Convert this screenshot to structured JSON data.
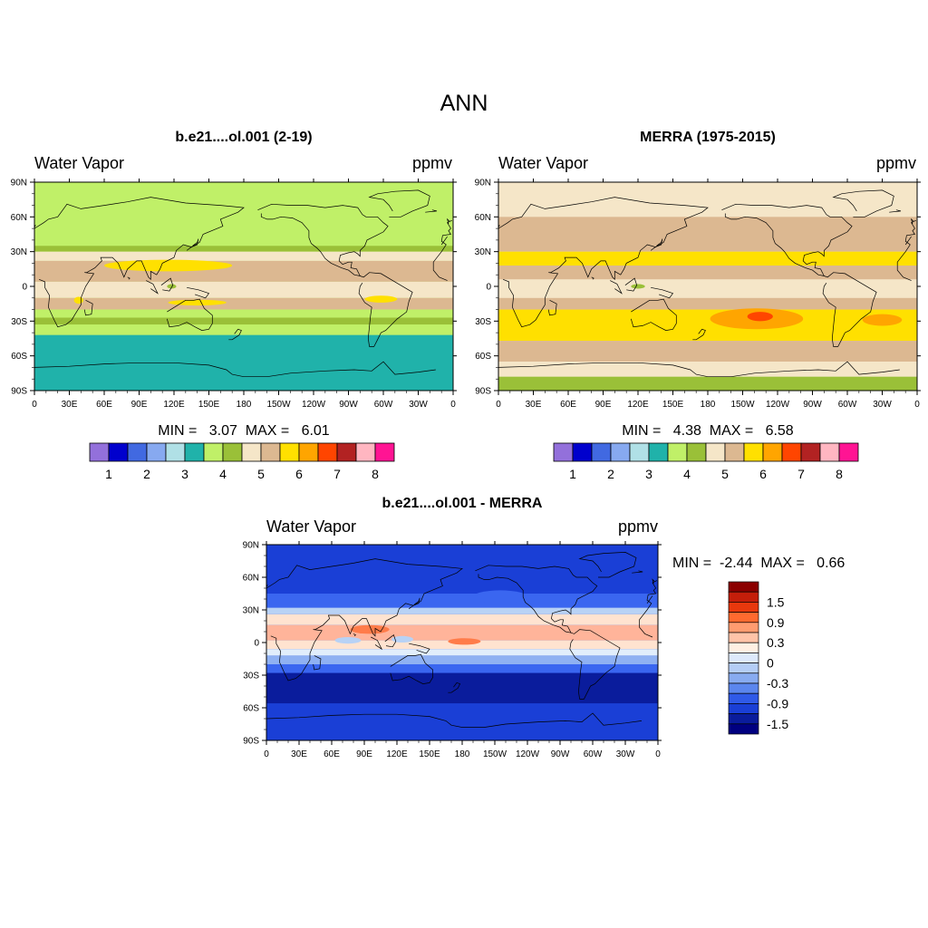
{
  "figure": {
    "title": "ANN"
  },
  "panels": [
    {
      "id": "model",
      "title": "b.e21....ol.001 (2-19)",
      "left_label": "Water Vapor",
      "right_label": "ppmv",
      "min_max": "MIN =   3.07  MAX =   6.01",
      "background": "#c0f068",
      "bands": [
        {
          "lat": [
            90,
            35
          ],
          "color": "#c0f068"
        },
        {
          "lat": [
            35,
            30
          ],
          "color": "#9ac038"
        },
        {
          "lat": [
            30,
            22
          ],
          "color": "#f5e6c8"
        },
        {
          "lat": [
            22,
            4
          ],
          "color": "#dcb891"
        },
        {
          "lat": [
            4,
            -10
          ],
          "color": "#f5e6c8"
        },
        {
          "lat": [
            -10,
            -20
          ],
          "color": "#dcb891"
        },
        {
          "lat": [
            -20,
            -27
          ],
          "color": "#c0f068"
        },
        {
          "lat": [
            -27,
            -33
          ],
          "color": "#9ac038"
        },
        {
          "lat": [
            -33,
            -42
          ],
          "color": "#c0f068"
        },
        {
          "lat": [
            -42,
            -90
          ],
          "color": "#20b2aa"
        }
      ],
      "blobs": [
        {
          "lon": 115,
          "lat": 18,
          "rx": 55,
          "ry": 5,
          "color": "#ffe000"
        },
        {
          "lon": 140,
          "lat": -14,
          "rx": 25,
          "ry": 2.5,
          "color": "#ffe000"
        },
        {
          "lon": 298,
          "lat": -11,
          "rx": 14,
          "ry": 3,
          "color": "#ffe000"
        },
        {
          "lon": 38,
          "lat": -12,
          "rx": 4,
          "ry": 3,
          "color": "#ffe000"
        },
        {
          "lon": 118,
          "lat": 0,
          "rx": 4,
          "ry": 2,
          "color": "#9ac038"
        }
      ]
    },
    {
      "id": "obs",
      "title": "MERRA (1975-2015)",
      "left_label": "Water Vapor",
      "right_label": "ppmv",
      "min_max": "MIN =   4.38  MAX =   6.58",
      "background": "#f5e6c8",
      "bands": [
        {
          "lat": [
            90,
            60
          ],
          "color": "#f5e6c8"
        },
        {
          "lat": [
            60,
            30
          ],
          "color": "#dcb891"
        },
        {
          "lat": [
            30,
            18
          ],
          "color": "#ffe000"
        },
        {
          "lat": [
            18,
            6
          ],
          "color": "#dcb891"
        },
        {
          "lat": [
            6,
            -10
          ],
          "color": "#f5e6c8"
        },
        {
          "lat": [
            -10,
            -20
          ],
          "color": "#dcb891"
        },
        {
          "lat": [
            -20,
            -47
          ],
          "color": "#ffe000"
        },
        {
          "lat": [
            -47,
            -65
          ],
          "color": "#dcb891"
        },
        {
          "lat": [
            -65,
            -78
          ],
          "color": "#f5e6c8"
        },
        {
          "lat": [
            -78,
            -90
          ],
          "color": "#9ac038"
        }
      ],
      "blobs": [
        {
          "lon": 222,
          "lat": -28,
          "rx": 40,
          "ry": 9,
          "color": "#ffa500"
        },
        {
          "lon": 225,
          "lat": -26,
          "rx": 11,
          "ry": 4,
          "color": "#ff4500"
        },
        {
          "lon": 330,
          "lat": -29,
          "rx": 17,
          "ry": 5,
          "color": "#ffa500"
        },
        {
          "lon": 120,
          "lat": 0,
          "rx": 6,
          "ry": 2,
          "color": "#9ac038"
        }
      ]
    },
    {
      "id": "diff",
      "title": "b.e21....ol.001 - MERRA",
      "left_label": "Water Vapor",
      "right_label": "ppmv",
      "min_max": "MIN =  -2.44  MAX =   0.66",
      "background": "#1a3fd6",
      "bands": [
        {
          "lat": [
            90,
            45
          ],
          "color": "#1a3fd6"
        },
        {
          "lat": [
            45,
            32
          ],
          "color": "#3a66f0"
        },
        {
          "lat": [
            32,
            26
          ],
          "color": "#b8d2f5"
        },
        {
          "lat": [
            26,
            16
          ],
          "color": "#ffe3d0"
        },
        {
          "lat": [
            16,
            2
          ],
          "color": "#ffb49a"
        },
        {
          "lat": [
            2,
            -6
          ],
          "color": "#ffe3d0"
        },
        {
          "lat": [
            -6,
            -12
          ],
          "color": "#e1eefb"
        },
        {
          "lat": [
            -12,
            -20
          ],
          "color": "#8fb1f2"
        },
        {
          "lat": [
            -20,
            -28
          ],
          "color": "#3a66f0"
        },
        {
          "lat": [
            -28,
            -56
          ],
          "color": "#0a1c9c"
        },
        {
          "lat": [
            -56,
            -90
          ],
          "color": "#1a3fd6"
        }
      ],
      "blobs": [
        {
          "lon": 215,
          "lat": 42,
          "rx": 25,
          "ry": 6,
          "color": "#3a66f0"
        },
        {
          "lon": 125,
          "lat": 3,
          "rx": 10,
          "ry": 3,
          "color": "#b8d2f5"
        },
        {
          "lon": 75,
          "lat": 2,
          "rx": 12,
          "ry": 3,
          "color": "#b8d2f5"
        },
        {
          "lon": 182,
          "lat": 1,
          "rx": 15,
          "ry": 3,
          "color": "#ff7c4a"
        },
        {
          "lon": 95,
          "lat": 12,
          "rx": 18,
          "ry": 4,
          "color": "#ff7c4a"
        }
      ]
    }
  ],
  "axes": {
    "x_ticks": [
      "0",
      "30E",
      "60E",
      "90E",
      "120E",
      "150E",
      "180",
      "150W",
      "120W",
      "90W",
      "60W",
      "30W",
      "0"
    ],
    "y_ticks": [
      "90N",
      "60N",
      "30N",
      "0",
      "30S",
      "60S",
      "90S"
    ]
  },
  "colorbar_abs": {
    "colors": [
      "#9370db",
      "#0000cd",
      "#4169e1",
      "#87a9f0",
      "#b0e0e6",
      "#20b2aa",
      "#c0f068",
      "#9ac038",
      "#f5e6c8",
      "#dcb891",
      "#ffe000",
      "#ffa500",
      "#ff4500",
      "#b22222",
      "#ffb6c1",
      "#ff1493"
    ],
    "labels": [
      "1",
      "2",
      "3",
      "4",
      "5",
      "6",
      "7",
      "8"
    ]
  },
  "colorbar_diff": {
    "colors": [
      "#8b0000",
      "#c41e0a",
      "#e8380d",
      "#ff6a2f",
      "#ff9c70",
      "#ffc4a8",
      "#fff0e3",
      "#dde9fb",
      "#b4cdf5",
      "#88abf0",
      "#5b86ee",
      "#2f5ae8",
      "#1a3fd6",
      "#0a1c9c",
      "#000080"
    ],
    "labels": [
      "1.5",
      "0.9",
      "0.3",
      "0",
      "-0.3",
      "-0.9",
      "-1.5"
    ]
  }
}
